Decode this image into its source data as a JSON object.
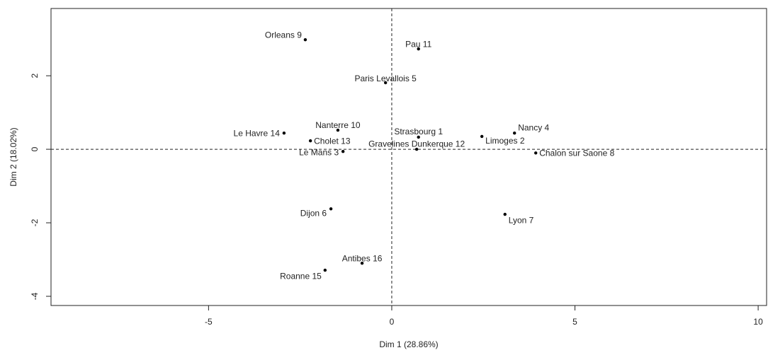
{
  "chart_data": {
    "type": "scatter",
    "x_label": "Dim 1 (28.86%)",
    "y_label": "Dim 2 (18.02%)",
    "labels": [
      "Orleans 9",
      "Pau 11",
      "Paris Levallois 5",
      "Nanterre 10",
      "Le Havre 14",
      "Cholet 13",
      "Le Mans 3",
      "Strasbourg 1",
      "Gravelines Dunkerque 12",
      "Limoges 2",
      "Nancy 4",
      "Chalon sur Saone 8",
      "Dijon 6",
      "Lyon 7",
      "Antibes 16",
      "Roanne 15"
    ],
    "series": [
      {
        "color": "#000000",
        "x": [
          -2.36,
          0.73,
          -0.17,
          -1.47,
          -2.94,
          -2.22,
          -1.33,
          0.73,
          0.68,
          2.46,
          3.35,
          3.93,
          -1.66,
          3.09,
          -0.81,
          -1.82
        ],
        "values": [
          2.98,
          2.73,
          1.81,
          0.52,
          0.44,
          0.23,
          -0.06,
          0.33,
          0.0,
          0.35,
          0.44,
          -0.1,
          -1.62,
          -1.77,
          -3.1,
          -3.29
        ]
      }
    ],
    "xlim": [
      -9.3,
      10.23
    ],
    "ylim": [
      -4.25,
      3.83
    ],
    "xticks": [
      -5,
      0,
      5,
      10
    ],
    "yticks": [
      -4,
      -2,
      0,
      2
    ],
    "hline": 0,
    "vline": 0
  }
}
